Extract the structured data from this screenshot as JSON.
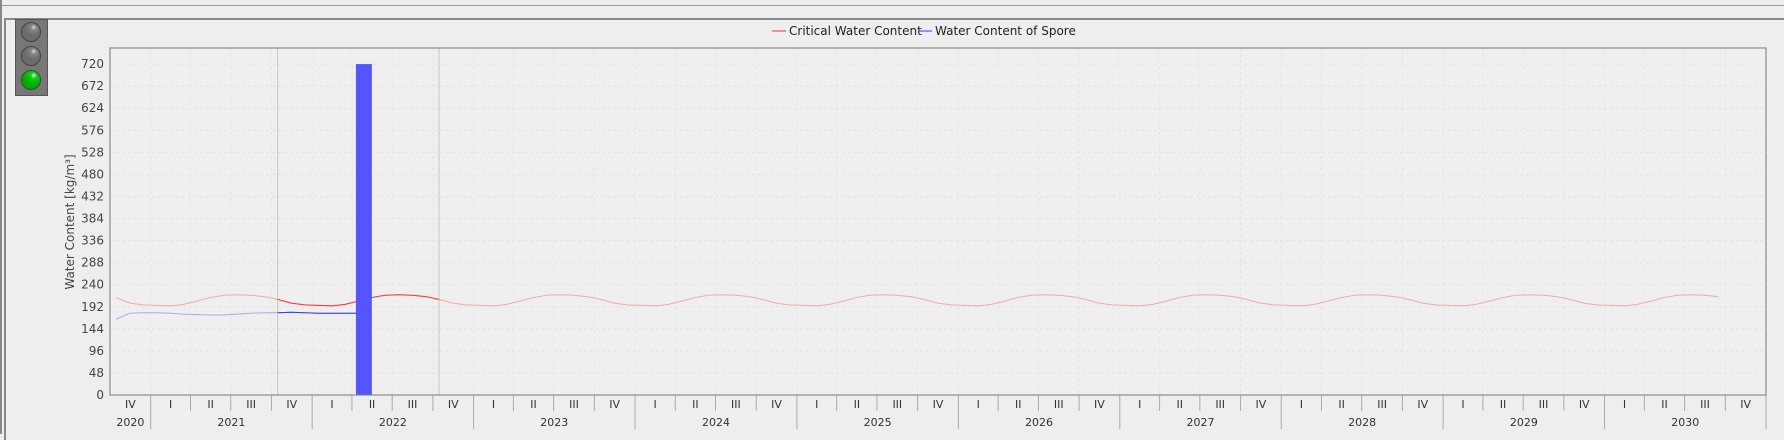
{
  "status_lights": [
    {
      "name": "red",
      "state": "off"
    },
    {
      "name": "yellow",
      "state": "off"
    },
    {
      "name": "green",
      "state": "on",
      "color": "#11cc11"
    }
  ],
  "chart_data": {
    "type": "line",
    "legend": {
      "placement": "top-center",
      "entries": [
        "Critical Water Content",
        "Water Content of Spore"
      ]
    },
    "ylabel": "Water Content [kg/m³]",
    "xlabel": "",
    "ylim": [
      0,
      755
    ],
    "yticks": [
      0,
      48,
      96,
      144,
      192,
      240,
      288,
      336,
      384,
      432,
      480,
      528,
      576,
      624,
      672,
      720
    ],
    "xlim": [
      "2020-10-01",
      "2031-01-01"
    ],
    "x_axis": {
      "quarter_labels": [
        "I",
        "II",
        "III",
        "IV"
      ],
      "years": [
        "2020",
        "2021",
        "2022",
        "2023",
        "2024",
        "2025",
        "2026",
        "2027",
        "2028",
        "2029",
        "2030"
      ]
    },
    "grid": true,
    "highlight_window": [
      "2021-10-15",
      "2022-10-15"
    ],
    "series": [
      {
        "name": "Critical Water Content",
        "color": "#ff3333",
        "faded_color": "#f4a8a8",
        "interval": "monthly",
        "start_month": "2020-10",
        "values": [
          212,
          200,
          196,
          195,
          194,
          197,
          204,
          212,
          217,
          218,
          217,
          214,
          208,
          200,
          196,
          195,
          194,
          197,
          204,
          212,
          217,
          218,
          217,
          214,
          208,
          200,
          196,
          195,
          194,
          197,
          204,
          212,
          217,
          218,
          217,
          214,
          208,
          200,
          196,
          195,
          194,
          197,
          204,
          212,
          217,
          218,
          217,
          214,
          208,
          200,
          196,
          195,
          194,
          197,
          204,
          212,
          217,
          218,
          217,
          214,
          208,
          200,
          196,
          195,
          194,
          197,
          204,
          212,
          217,
          218,
          217,
          214,
          208,
          200,
          196,
          195,
          194,
          197,
          204,
          212,
          217,
          218,
          217,
          214,
          208,
          200,
          196,
          195,
          194,
          197,
          204,
          212,
          217,
          218,
          217,
          214,
          208,
          200,
          196,
          195,
          194,
          197,
          204,
          212,
          217,
          218,
          217,
          214,
          208,
          200,
          196,
          195,
          194,
          197,
          204,
          212,
          217,
          218,
          217,
          214
        ]
      },
      {
        "name": "Water Content of Spore",
        "color": "#3333ff",
        "faded_color": "#a8a8f4",
        "interval": "monthly",
        "start_month": "2020-10",
        "values": [
          165,
          178,
          179,
          179,
          178,
          176,
          175,
          174,
          174,
          176,
          178,
          179,
          179,
          180,
          179,
          178,
          178,
          178,
          178
        ],
        "bar": {
          "start": "2022-04-10",
          "end": "2022-05-16",
          "value": 720,
          "color": "#5555ff"
        }
      }
    ]
  }
}
